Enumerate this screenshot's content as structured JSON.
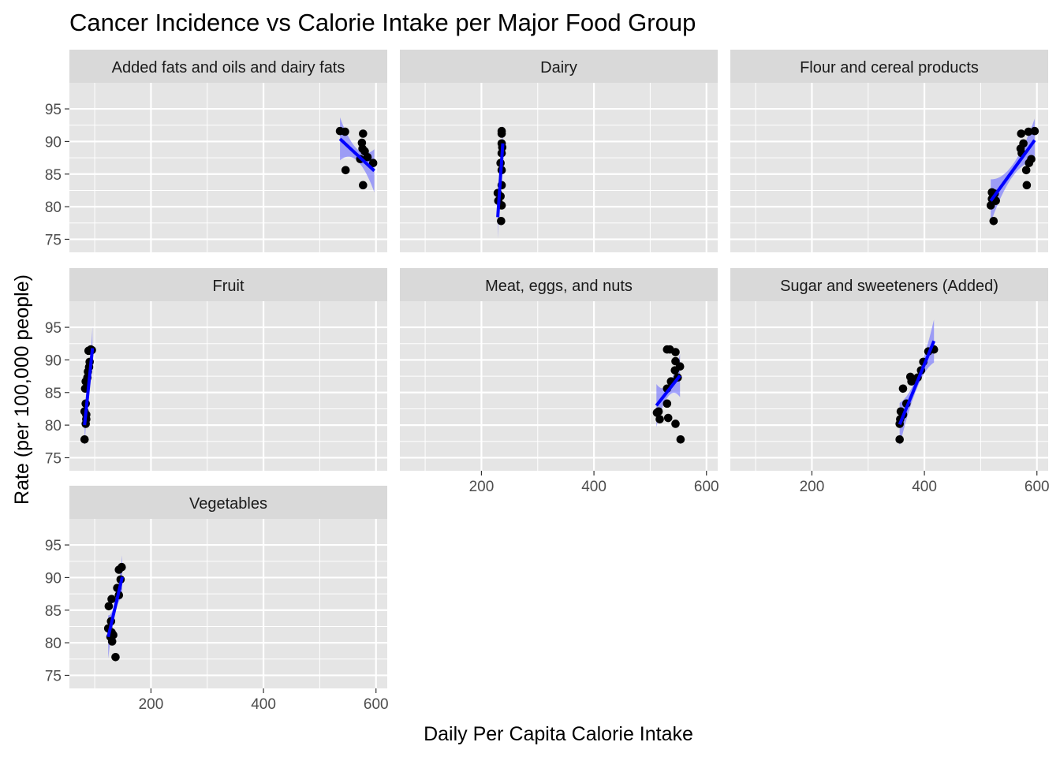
{
  "chart_data": {
    "type": "scatter",
    "title": "Cancer Incidence vs Calorie Intake per Major Food Group",
    "xlabel": "Daily Per Capita Calorie Intake",
    "ylabel": "Rate (per 100,000 people)",
    "xlim": [
      55,
      620
    ],
    "ylim": [
      73,
      99
    ],
    "x_ticks": [
      200,
      400,
      600
    ],
    "y_ticks": [
      75,
      80,
      85,
      90,
      95
    ],
    "grid": true,
    "facets": [
      {
        "name": "Added fats and oils and dairy fats",
        "points": [
          [
            536,
            91.6
          ],
          [
            545,
            91.5
          ],
          [
            577,
            91.2
          ],
          [
            575,
            89.8
          ],
          [
            580,
            88.5
          ],
          [
            576,
            88.9
          ],
          [
            572,
            87.3
          ],
          [
            585,
            87.6
          ],
          [
            595,
            86.7
          ],
          [
            546,
            85.6
          ],
          [
            577,
            83.3
          ]
        ],
        "fit": {
          "x0": 536,
          "y0": 90.4,
          "x1": 597,
          "y1": 85.5
        }
      },
      {
        "name": "Dairy",
        "points": [
          [
            236,
            91.6
          ],
          [
            236,
            91.2
          ],
          [
            236,
            89.7
          ],
          [
            237,
            89.1
          ],
          [
            236,
            88.2
          ],
          [
            234,
            86.7
          ],
          [
            236,
            85.6
          ],
          [
            236,
            83.3
          ],
          [
            229,
            82.1
          ],
          [
            234,
            81.6
          ],
          [
            230,
            80.9
          ],
          [
            236,
            80.2
          ],
          [
            235,
            77.8
          ]
        ],
        "fit": {
          "x0": 229,
          "y0": 78.4,
          "x1": 238,
          "y1": 89.7
        }
      },
      {
        "name": "Flour and cereal products",
        "points": [
          [
            520,
            82.2
          ],
          [
            525,
            82.0
          ],
          [
            520,
            81.2
          ],
          [
            527,
            80.9
          ],
          [
            518,
            80.2
          ],
          [
            523,
            77.8
          ],
          [
            572,
            91.2
          ],
          [
            585,
            91.5
          ],
          [
            596,
            91.6
          ],
          [
            576,
            89.7
          ],
          [
            571,
            88.9
          ],
          [
            573,
            88.2
          ],
          [
            590,
            87.3
          ],
          [
            586,
            86.7
          ],
          [
            581,
            85.6
          ],
          [
            582,
            83.3
          ]
        ],
        "fit": {
          "x0": 518,
          "y0": 80.9,
          "x1": 596,
          "y1": 90.2
        }
      },
      {
        "name": "Fruit",
        "points": [
          [
            93,
            91.6
          ],
          [
            89,
            91.4
          ],
          [
            95,
            91.5
          ],
          [
            91,
            89.7
          ],
          [
            90,
            88.9
          ],
          [
            88,
            88.2
          ],
          [
            87,
            87.3
          ],
          [
            84,
            86.7
          ],
          [
            83,
            85.6
          ],
          [
            84,
            83.3
          ],
          [
            82,
            82.1
          ],
          [
            85,
            81.6
          ],
          [
            85,
            80.9
          ],
          [
            84,
            80.2
          ],
          [
            82,
            77.8
          ]
        ],
        "fit": {
          "x0": 82,
          "y0": 80.0,
          "x1": 96,
          "y1": 91.8
        }
      },
      {
        "name": "Meat, eggs, and nuts",
        "points": [
          [
            530,
            91.6
          ],
          [
            535,
            91.6
          ],
          [
            545,
            91.2
          ],
          [
            545,
            89.8
          ],
          [
            553,
            89.0
          ],
          [
            544,
            88.4
          ],
          [
            549,
            87.3
          ],
          [
            537,
            86.7
          ],
          [
            530,
            85.6
          ],
          [
            530,
            83.3
          ],
          [
            515,
            82.1
          ],
          [
            512,
            81.9
          ],
          [
            517,
            80.9
          ],
          [
            532,
            81.1
          ],
          [
            545,
            80.2
          ],
          [
            554,
            77.8
          ]
        ],
        "fit": {
          "x0": 511,
          "y0": 83.0,
          "x1": 553,
          "y1": 87.6
        }
      },
      {
        "name": "Sugar and sweeteners (Added)",
        "points": [
          [
            417,
            91.6
          ],
          [
            407,
            91.3
          ],
          [
            398,
            89.7
          ],
          [
            394,
            88.4
          ],
          [
            388,
            87.3
          ],
          [
            375,
            87.4
          ],
          [
            377,
            86.7
          ],
          [
            362,
            85.6
          ],
          [
            368,
            83.3
          ],
          [
            358,
            82.1
          ],
          [
            362,
            81.6
          ],
          [
            357,
            80.9
          ],
          [
            356,
            80.2
          ],
          [
            356,
            77.8
          ]
        ],
        "fit": {
          "x0": 356,
          "y0": 80.1,
          "x1": 417,
          "y1": 92.9
        }
      },
      {
        "name": "Vegetables",
        "points": [
          [
            148,
            91.6
          ],
          [
            143,
            91.2
          ],
          [
            146,
            89.7
          ],
          [
            140,
            88.4
          ],
          [
            143,
            87.3
          ],
          [
            130,
            86.7
          ],
          [
            125,
            85.6
          ],
          [
            129,
            83.3
          ],
          [
            124,
            82.2
          ],
          [
            130,
            81.6
          ],
          [
            128,
            80.9
          ],
          [
            133,
            81.2
          ],
          [
            131,
            80.2
          ],
          [
            137,
            77.8
          ]
        ],
        "fit": {
          "x0": 124,
          "y0": 80.9,
          "x1": 149,
          "y1": 90.1
        }
      }
    ],
    "colors": {
      "panel_background": "#e5e5e5",
      "grid": "#ffffff",
      "strip_background": "#d9d9d9",
      "points": "#000000",
      "fit_line": "#0000ff",
      "confidence_band": "#6a6aff",
      "tick_label": "#4d4d4d"
    }
  }
}
